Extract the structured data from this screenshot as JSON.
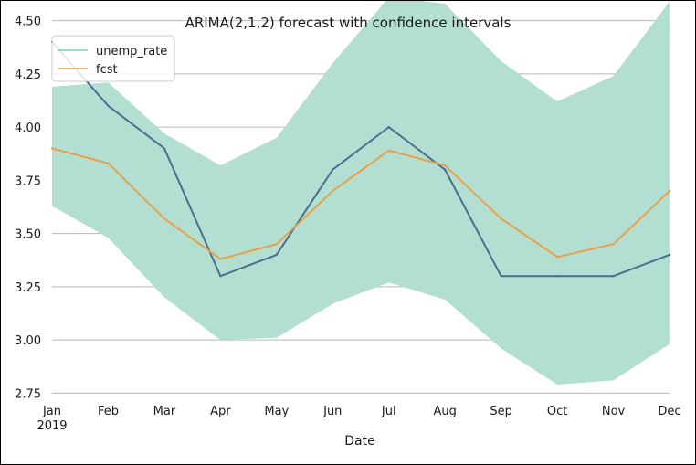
{
  "chart_data": {
    "type": "line",
    "title": "ARIMA(2,1,2) forecast with confidence intervals",
    "xlabel": "Date",
    "ylabel": "",
    "x": [
      "Jan",
      "Feb",
      "Mar",
      "Apr",
      "May",
      "Jun",
      "Jul",
      "Aug",
      "Sep",
      "Oct",
      "Nov",
      "Dec"
    ],
    "x_year_label": "2019",
    "yticks": [
      "2.75",
      "3.00",
      "3.25",
      "3.50",
      "3.75",
      "4.00",
      "4.25",
      "4.50"
    ],
    "ylim": [
      2.73,
      4.55
    ],
    "grid": "horizontal",
    "legend_position": "top-left",
    "series": [
      {
        "name": "unemp_rate",
        "color": "#4c6e8e",
        "values": [
          4.4,
          4.1,
          3.9,
          3.3,
          3.4,
          3.8,
          4.0,
          3.8,
          3.3,
          3.3,
          3.3,
          3.4
        ]
      },
      {
        "name": "fcst",
        "color": "#e8a04a",
        "values": [
          3.9,
          3.83,
          3.57,
          3.38,
          3.45,
          3.7,
          3.89,
          3.82,
          3.57,
          3.39,
          3.45,
          3.7
        ]
      }
    ],
    "confidence_interval": {
      "color": "#b2dfd1",
      "lower": [
        3.63,
        3.48,
        3.2,
        3.0,
        3.01,
        3.17,
        3.27,
        3.19,
        2.96,
        2.79,
        2.81,
        2.98
      ],
      "upper": [
        4.19,
        4.21,
        3.97,
        3.82,
        3.95,
        4.3,
        4.61,
        4.58,
        4.31,
        4.12,
        4.24,
        4.59
      ]
    },
    "legend_line_colors": {
      "unemp_rate": "#8ac7b3",
      "fcst": "#e8a04a"
    }
  }
}
